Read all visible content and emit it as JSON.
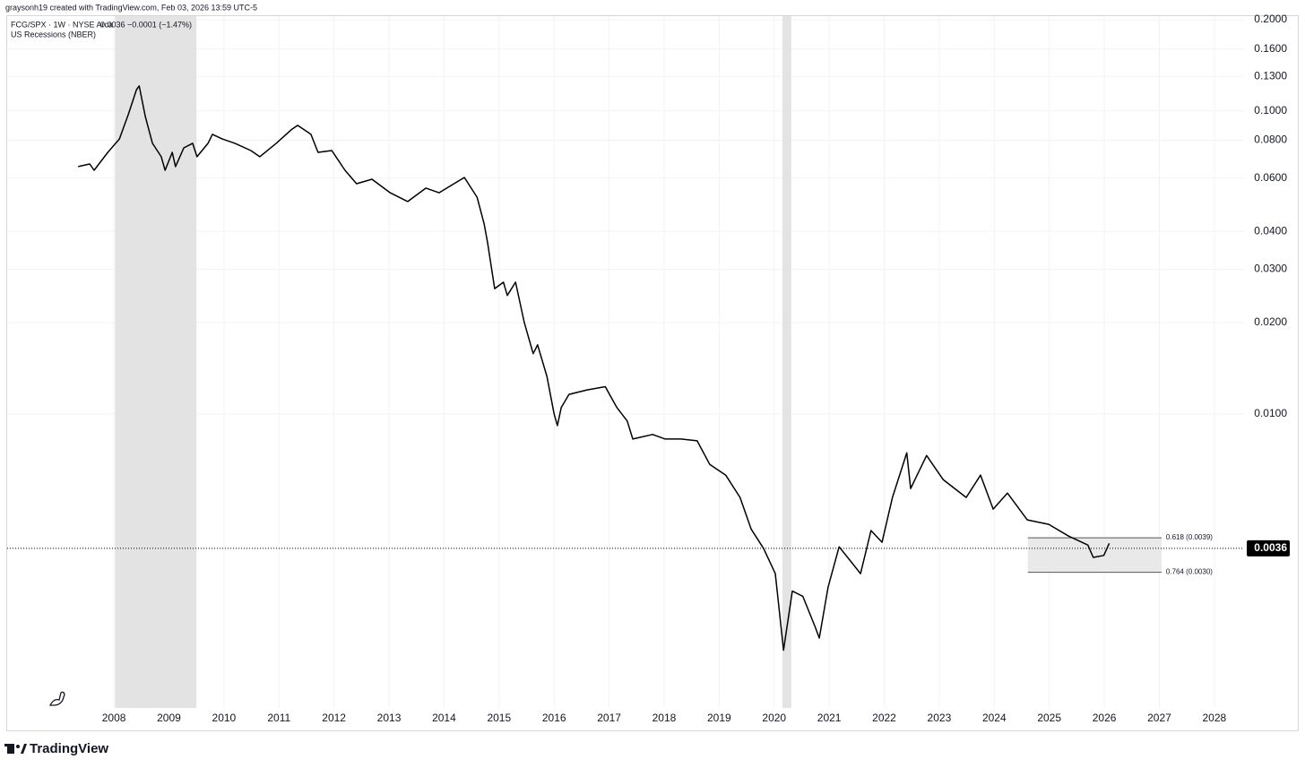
{
  "header": "graysonh19 created with TradingView.com, Feb 03, 2026 13:59 UTC-5",
  "brand": "TradingView",
  "chart_data": {
    "type": "line",
    "symbol": "FCG/SPX · 1W · NYSE Arca",
    "change": "−0.0001 (−1.47%)",
    "indicator": "US Recessions (NBER)",
    "log_scale": true,
    "grid": true,
    "color": "#000000",
    "last_price": 0.0036,
    "xlim": [
      2006.06,
      2028.54
    ],
    "ylim": [
      0.00107,
      0.2055
    ],
    "xticks": [
      2008,
      2009,
      2010,
      2011,
      2012,
      2013,
      2014,
      2015,
      2016,
      2017,
      2018,
      2019,
      2020,
      2021,
      2022,
      2023,
      2024,
      2025,
      2026,
      2027,
      2028
    ],
    "yticks": [
      {
        "value": 0.2,
        "label": "0.2000"
      },
      {
        "value": 0.16,
        "label": "0.1600"
      },
      {
        "value": 0.13,
        "label": "0.1300"
      },
      {
        "value": 0.1,
        "label": "0.1000"
      },
      {
        "value": 0.08,
        "label": "0.0800"
      },
      {
        "value": 0.06,
        "label": "0.0600"
      },
      {
        "value": 0.04,
        "label": "0.0400"
      },
      {
        "value": 0.03,
        "label": "0.0300"
      },
      {
        "value": 0.02,
        "label": "0.0200"
      },
      {
        "value": 0.01,
        "label": "0.0100"
      }
    ],
    "recessions": [
      [
        2008.02,
        2009.5
      ],
      [
        2020.15,
        2020.31
      ]
    ],
    "fib_range": [
      2024.61,
      2027.04
    ],
    "fib_levels": [
      {
        "value": 0.0039,
        "label": "0.618 (0.0039)"
      },
      {
        "value": 0.003,
        "label": "0.764 (0.0030)"
      }
    ],
    "x": [
      2007.35,
      2007.56,
      2007.64,
      2007.89,
      2008.1,
      2008.26,
      2008.41,
      2008.46,
      2008.57,
      2008.7,
      2008.86,
      2008.93,
      2009.06,
      2009.12,
      2009.27,
      2009.43,
      2009.51,
      2009.71,
      2009.79,
      2009.97,
      2010.2,
      2010.49,
      2010.65,
      2010.95,
      2011.22,
      2011.34,
      2011.58,
      2011.71,
      2011.96,
      2012.2,
      2012.41,
      2012.69,
      2013.02,
      2013.34,
      2013.67,
      2013.91,
      2014.37,
      2014.6,
      2014.73,
      2014.79,
      2014.92,
      2015.08,
      2015.15,
      2015.3,
      2015.46,
      2015.62,
      2015.7,
      2015.87,
      2016.0,
      2016.06,
      2016.13,
      2016.27,
      2016.6,
      2016.93,
      2017.14,
      2017.33,
      2017.43,
      2017.79,
      2018.02,
      2018.31,
      2018.6,
      2018.83,
      2019.12,
      2019.38,
      2019.58,
      2019.81,
      2020.02,
      2020.17,
      2020.33,
      2020.52,
      2020.75,
      2020.82,
      2020.98,
      2021.18,
      2021.37,
      2021.57,
      2021.76,
      2021.96,
      2022.15,
      2022.41,
      2022.48,
      2022.77,
      2023.07,
      2023.49,
      2023.75,
      2023.98,
      2024.24,
      2024.6,
      2024.99,
      2025.35,
      2025.7,
      2025.8,
      2025.99,
      2026.09
    ],
    "values": [
      0.0655,
      0.0668,
      0.0637,
      0.073,
      0.0808,
      0.0972,
      0.1176,
      0.1209,
      0.0959,
      0.0782,
      0.0706,
      0.0637,
      0.073,
      0.0655,
      0.0755,
      0.0782,
      0.0706,
      0.0782,
      0.0837,
      0.0808,
      0.0782,
      0.074,
      0.0706,
      0.0782,
      0.0866,
      0.0896,
      0.0837,
      0.073,
      0.074,
      0.0637,
      0.0575,
      0.0595,
      0.0537,
      0.0502,
      0.0556,
      0.0537,
      0.0603,
      0.0519,
      0.0423,
      0.0369,
      0.0259,
      0.0272,
      0.0246,
      0.0272,
      0.02,
      0.0158,
      0.0169,
      0.0133,
      0.01,
      0.00915,
      0.0105,
      0.0116,
      0.012,
      0.0123,
      0.0105,
      0.00947,
      0.00826,
      0.00855,
      0.00826,
      0.00826,
      0.00815,
      0.00681,
      0.00628,
      0.0053,
      0.00417,
      0.00359,
      0.00297,
      0.00166,
      0.0026,
      0.0025,
      0.00197,
      0.00182,
      0.00268,
      0.00364,
      0.0033,
      0.00297,
      0.00412,
      0.00377,
      0.0053,
      0.00744,
      0.00567,
      0.00729,
      0.00607,
      0.0053,
      0.00628,
      0.00485,
      0.00548,
      0.00447,
      0.00432,
      0.00395,
      0.00369,
      0.00336,
      0.00341,
      0.00374
    ]
  }
}
